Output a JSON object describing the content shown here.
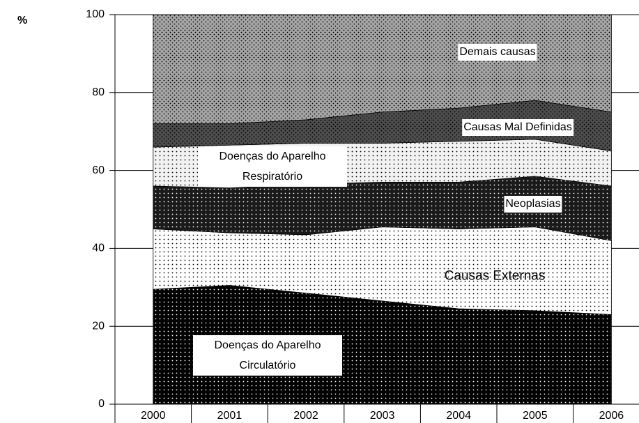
{
  "chart_data": {
    "type": "stacked-area",
    "y_label": "%",
    "categories": [
      "2000",
      "2001",
      "2002",
      "2003",
      "2004",
      "2005",
      "2006"
    ],
    "ylim": [
      0,
      100
    ],
    "yticks": [
      0,
      20,
      40,
      60,
      80,
      100
    ],
    "grid": true,
    "series": [
      {
        "name": "Doenças do Aparelho Circulatório",
        "color": "#000000",
        "values": [
          29.5,
          30.5,
          28.5,
          26.5,
          24.5,
          24,
          23
        ]
      },
      {
        "name": "Causas Externas",
        "color": "#ffffff",
        "values": [
          15.5,
          13.5,
          15,
          19,
          20.5,
          21.5,
          19
        ]
      },
      {
        "name": "Neoplasias",
        "color": "#1a1a1a",
        "values": [
          11,
          11.5,
          13,
          11.5,
          12,
          13,
          14
        ]
      },
      {
        "name": "Doenças do Aparelho Respiratório",
        "color": "#f2f2f2",
        "values": [
          10,
          11,
          10.5,
          10,
          10.5,
          9.5,
          9
        ]
      },
      {
        "name": "Causas Mal Definidas",
        "color": "#4d4d4d",
        "values": [
          6,
          5.5,
          6,
          8,
          8.5,
          10,
          10
        ]
      },
      {
        "name": "Demais causas",
        "color": "#a6a6a6",
        "values": [
          28,
          28,
          27,
          25,
          24,
          22,
          25
        ]
      }
    ]
  }
}
